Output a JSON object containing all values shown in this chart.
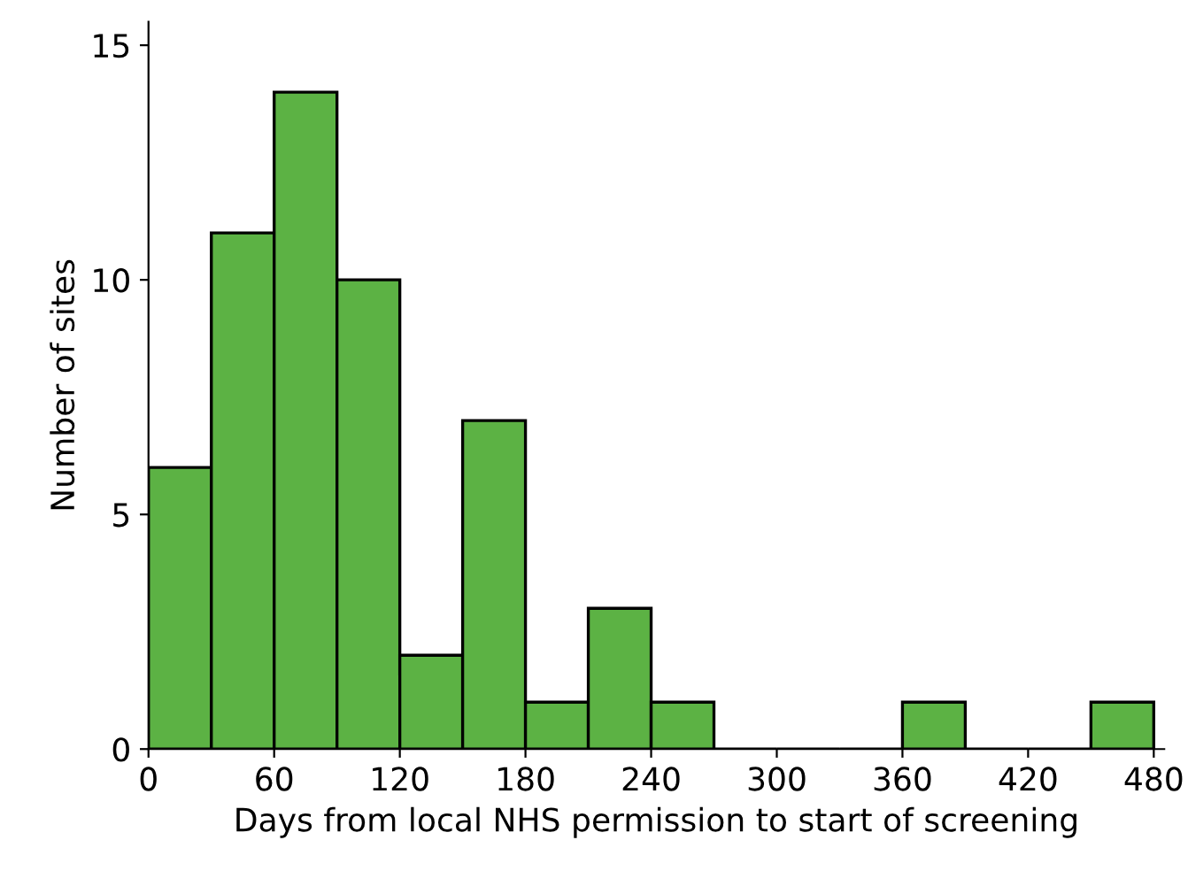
{
  "chart_data": {
    "type": "histogram",
    "xlabel": "Days from local NHS permission to start of screening",
    "ylabel": "Number of sites",
    "bins": [
      0,
      30,
      60,
      90,
      120,
      150,
      180,
      210,
      240,
      270,
      300,
      330,
      360,
      390,
      420,
      450,
      480
    ],
    "values": [
      6,
      11,
      14,
      10,
      2,
      7,
      1,
      3,
      1,
      0,
      0,
      0,
      1,
      0,
      0,
      1
    ],
    "color": "#5cb244",
    "xlim": [
      0,
      485
    ],
    "xticks": [
      0,
      60,
      120,
      180,
      240,
      300,
      360,
      420,
      480
    ],
    "ylim": [
      0,
      15.5
    ],
    "yticks": [
      0,
      5,
      10,
      15
    ],
    "grid": false
  }
}
